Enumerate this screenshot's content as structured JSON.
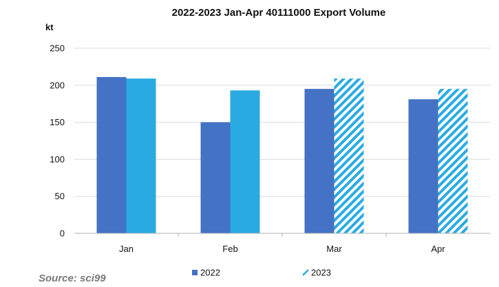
{
  "chart_data": {
    "type": "bar",
    "title": "2022-2023  Jan-Apr 40111000  Export Volume",
    "ylabel": "kt",
    "xlabel": "",
    "categories": [
      "Jan",
      "Feb",
      "Mar",
      "Apr"
    ],
    "ylim": [
      0,
      250
    ],
    "yticks": [
      0,
      50,
      100,
      150,
      200,
      250
    ],
    "grid": true,
    "legend_position": "bottom",
    "series": [
      {
        "name": "2022",
        "values": [
          211,
          150,
          195,
          181
        ],
        "color": "#4472C4",
        "pattern": "solid"
      },
      {
        "name": "2023",
        "values": [
          209,
          193,
          209,
          195
        ],
        "color": "#29ABE2",
        "pattern": [
          "solid",
          "solid",
          "hatched",
          "hatched"
        ]
      }
    ]
  },
  "source": "Source: sci99"
}
